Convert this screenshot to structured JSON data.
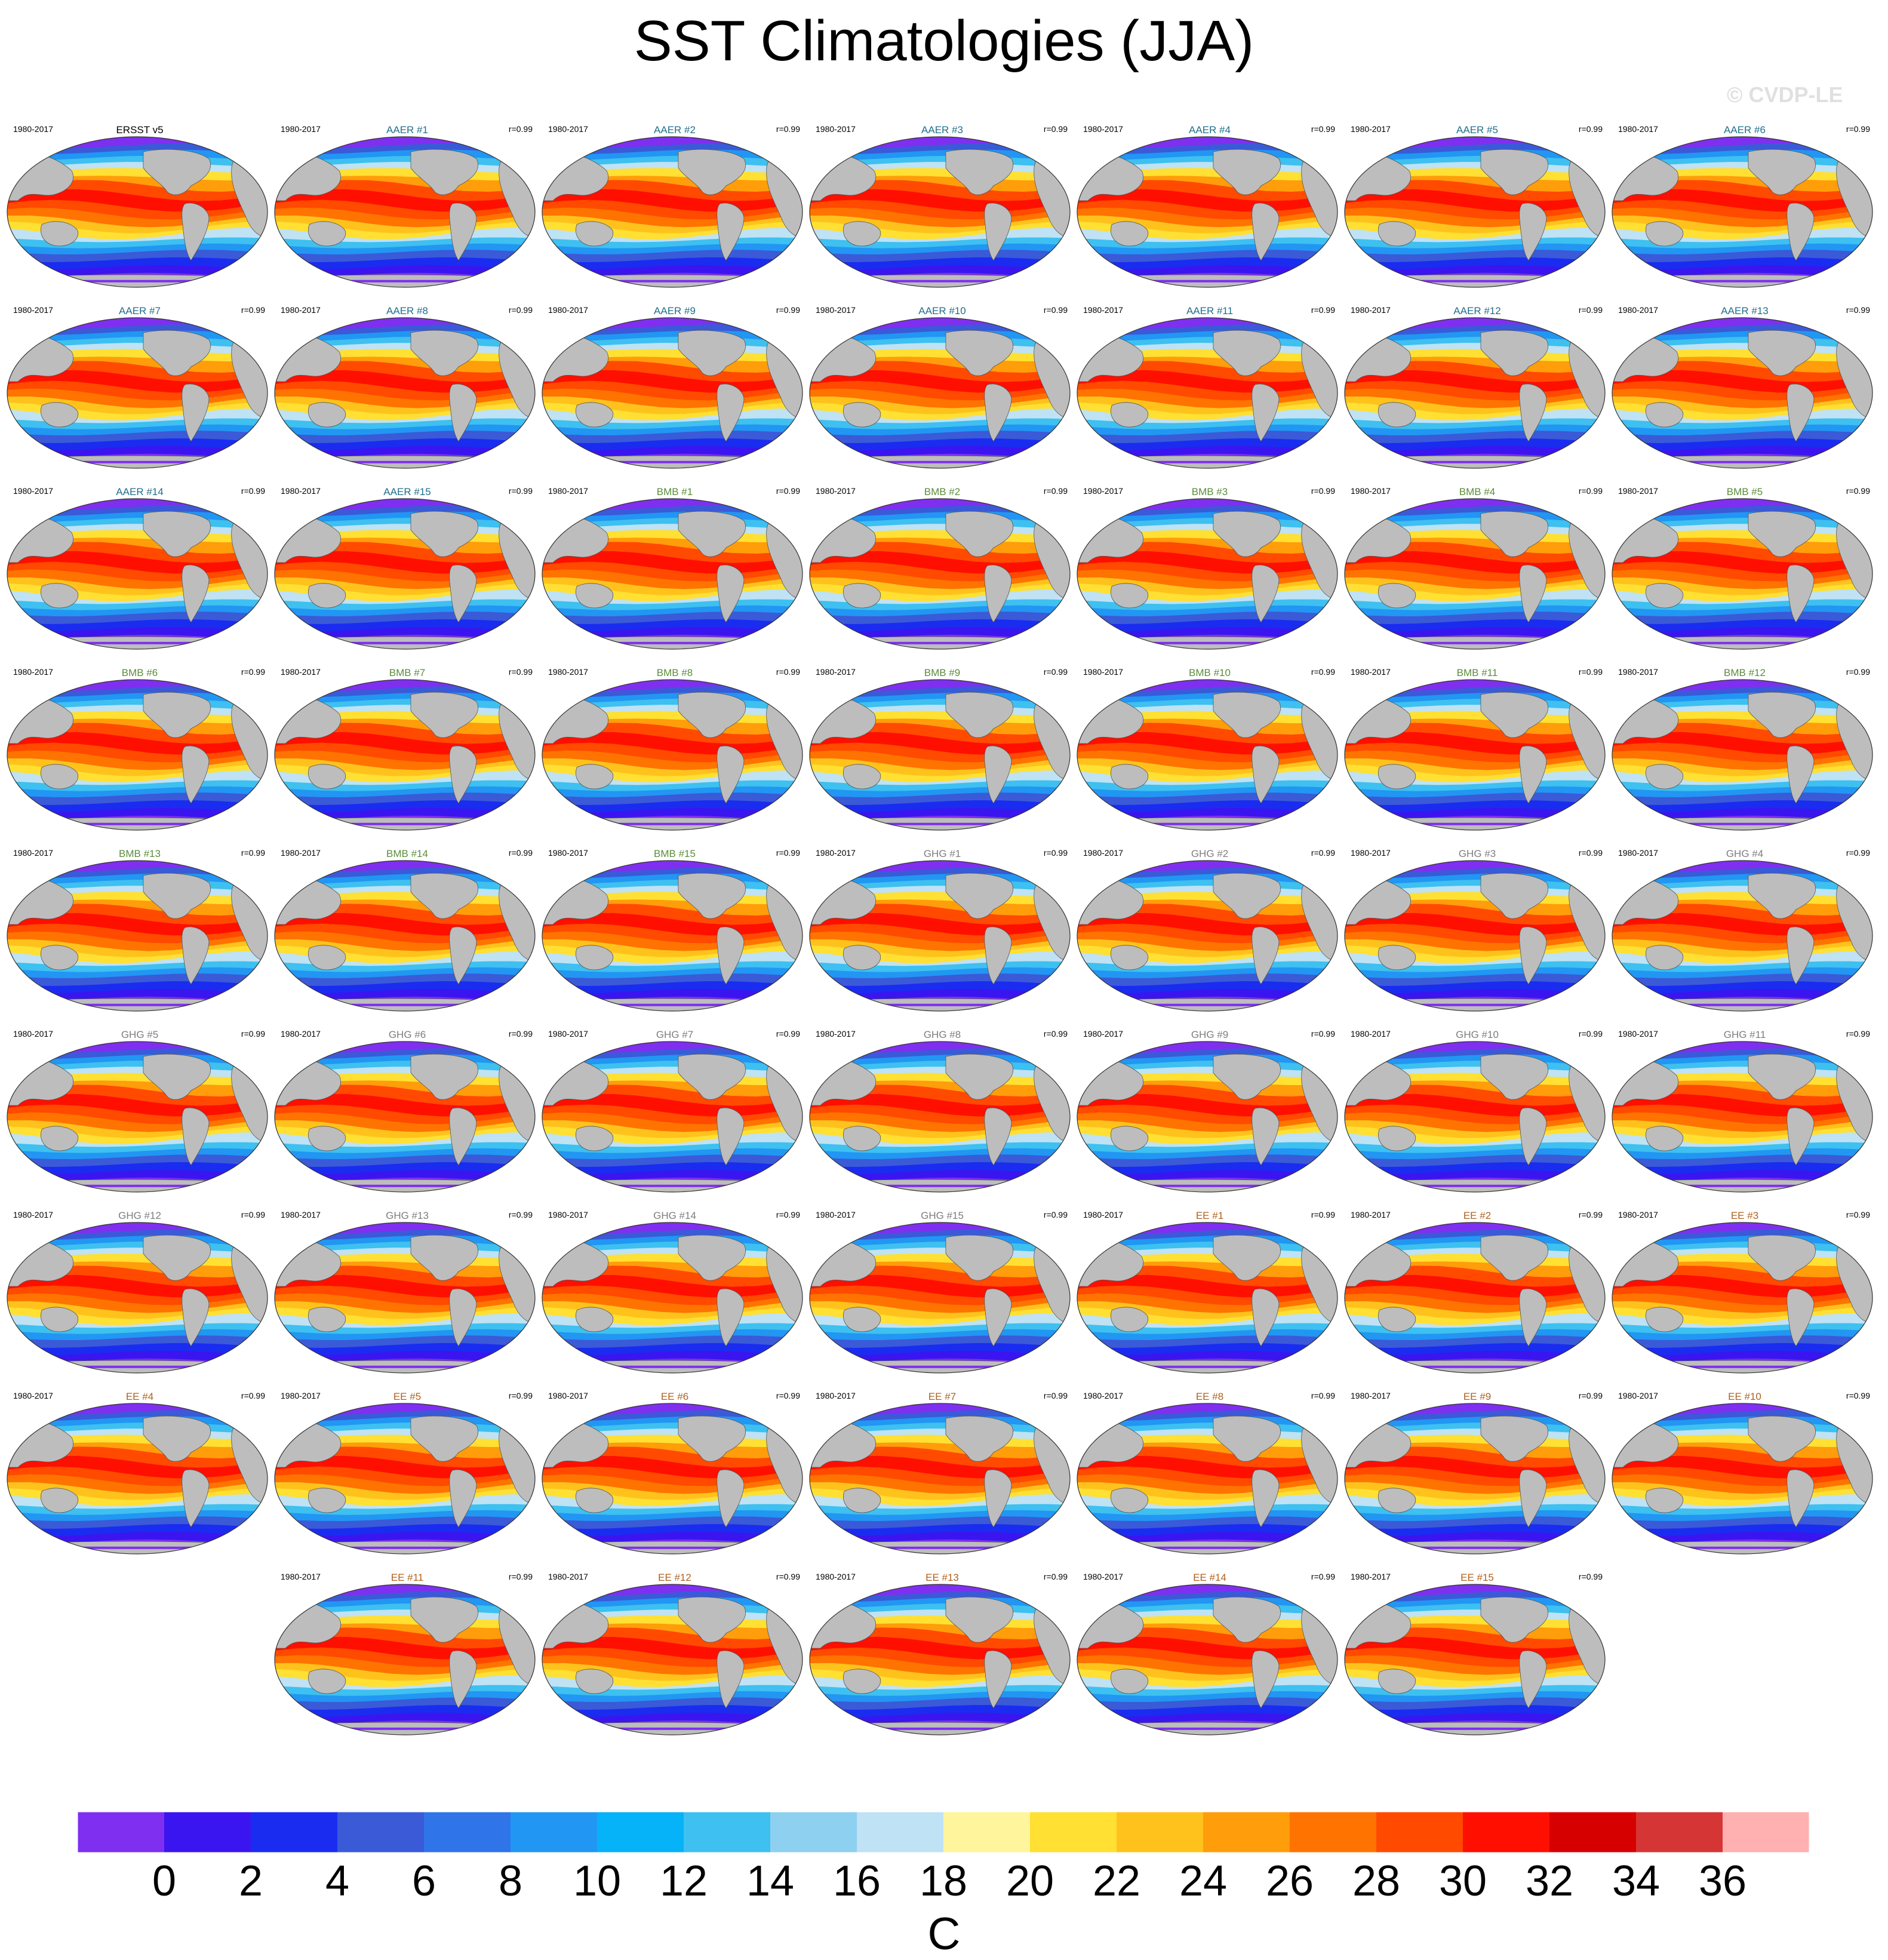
{
  "title": "SST Climatologies (JJA)",
  "watermark": "© CVDP-LE",
  "period": "1980-2017",
  "correlation": "r=0.99",
  "group_colors": {
    "obs": "#000000",
    "AAER": "#1f6e8c",
    "BMB": "#5b8c3a",
    "GHG": "#7d7d7d",
    "EE": "#b0601c"
  },
  "panels": [
    {
      "label": "ERSST v5",
      "group": "obs",
      "r": ""
    },
    {
      "label": "AAER #1",
      "group": "AAER",
      "r": "r=0.99"
    },
    {
      "label": "AAER #2",
      "group": "AAER",
      "r": "r=0.99"
    },
    {
      "label": "AAER #3",
      "group": "AAER",
      "r": "r=0.99"
    },
    {
      "label": "AAER #4",
      "group": "AAER",
      "r": "r=0.99"
    },
    {
      "label": "AAER #5",
      "group": "AAER",
      "r": "r=0.99"
    },
    {
      "label": "AAER #6",
      "group": "AAER",
      "r": "r=0.99"
    },
    {
      "label": "AAER #7",
      "group": "AAER",
      "r": "r=0.99"
    },
    {
      "label": "AAER #8",
      "group": "AAER",
      "r": "r=0.99"
    },
    {
      "label": "AAER #9",
      "group": "AAER",
      "r": "r=0.99"
    },
    {
      "label": "AAER #10",
      "group": "AAER",
      "r": "r=0.99"
    },
    {
      "label": "AAER #11",
      "group": "AAER",
      "r": "r=0.99"
    },
    {
      "label": "AAER #12",
      "group": "AAER",
      "r": "r=0.99"
    },
    {
      "label": "AAER #13",
      "group": "AAER",
      "r": "r=0.99"
    },
    {
      "label": "AAER #14",
      "group": "AAER",
      "r": "r=0.99"
    },
    {
      "label": "AAER #15",
      "group": "AAER",
      "r": "r=0.99"
    },
    {
      "label": "BMB #1",
      "group": "BMB",
      "r": "r=0.99"
    },
    {
      "label": "BMB #2",
      "group": "BMB",
      "r": "r=0.99"
    },
    {
      "label": "BMB #3",
      "group": "BMB",
      "r": "r=0.99"
    },
    {
      "label": "BMB #4",
      "group": "BMB",
      "r": "r=0.99"
    },
    {
      "label": "BMB #5",
      "group": "BMB",
      "r": "r=0.99"
    },
    {
      "label": "BMB #6",
      "group": "BMB",
      "r": "r=0.99"
    },
    {
      "label": "BMB #7",
      "group": "BMB",
      "r": "r=0.99"
    },
    {
      "label": "BMB #8",
      "group": "BMB",
      "r": "r=0.99"
    },
    {
      "label": "BMB #9",
      "group": "BMB",
      "r": "r=0.99"
    },
    {
      "label": "BMB #10",
      "group": "BMB",
      "r": "r=0.99"
    },
    {
      "label": "BMB #11",
      "group": "BMB",
      "r": "r=0.99"
    },
    {
      "label": "BMB #12",
      "group": "BMB",
      "r": "r=0.99"
    },
    {
      "label": "BMB #13",
      "group": "BMB",
      "r": "r=0.99"
    },
    {
      "label": "BMB #14",
      "group": "BMB",
      "r": "r=0.99"
    },
    {
      "label": "BMB #15",
      "group": "BMB",
      "r": "r=0.99"
    },
    {
      "label": "GHG #1",
      "group": "GHG",
      "r": "r=0.99"
    },
    {
      "label": "GHG #2",
      "group": "GHG",
      "r": "r=0.99"
    },
    {
      "label": "GHG #3",
      "group": "GHG",
      "r": "r=0.99"
    },
    {
      "label": "GHG #4",
      "group": "GHG",
      "r": "r=0.99"
    },
    {
      "label": "GHG #5",
      "group": "GHG",
      "r": "r=0.99"
    },
    {
      "label": "GHG #6",
      "group": "GHG",
      "r": "r=0.99"
    },
    {
      "label": "GHG #7",
      "group": "GHG",
      "r": "r=0.99"
    },
    {
      "label": "GHG #8",
      "group": "GHG",
      "r": "r=0.99"
    },
    {
      "label": "GHG #9",
      "group": "GHG",
      "r": "r=0.99"
    },
    {
      "label": "GHG #10",
      "group": "GHG",
      "r": "r=0.99"
    },
    {
      "label": "GHG #11",
      "group": "GHG",
      "r": "r=0.99"
    },
    {
      "label": "GHG #12",
      "group": "GHG",
      "r": "r=0.99"
    },
    {
      "label": "GHG #13",
      "group": "GHG",
      "r": "r=0.99"
    },
    {
      "label": "GHG #14",
      "group": "GHG",
      "r": "r=0.99"
    },
    {
      "label": "GHG #15",
      "group": "GHG",
      "r": "r=0.99"
    },
    {
      "label": "EE #1",
      "group": "EE",
      "r": "r=0.99"
    },
    {
      "label": "EE #2",
      "group": "EE",
      "r": "r=0.99"
    },
    {
      "label": "EE #3",
      "group": "EE",
      "r": "r=0.99"
    },
    {
      "label": "EE #4",
      "group": "EE",
      "r": "r=0.99"
    },
    {
      "label": "EE #5",
      "group": "EE",
      "r": "r=0.99"
    },
    {
      "label": "EE #6",
      "group": "EE",
      "r": "r=0.99"
    },
    {
      "label": "EE #7",
      "group": "EE",
      "r": "r=0.99"
    },
    {
      "label": "EE #8",
      "group": "EE",
      "r": "r=0.99"
    },
    {
      "label": "EE #9",
      "group": "EE",
      "r": "r=0.99"
    },
    {
      "label": "EE #10",
      "group": "EE",
      "r": "r=0.99"
    },
    {
      "label": "EE #11",
      "group": "EE",
      "r": "r=0.99"
    },
    {
      "label": "EE #12",
      "group": "EE",
      "r": "r=0.99"
    },
    {
      "label": "EE #13",
      "group": "EE",
      "r": "r=0.99"
    },
    {
      "label": "EE #14",
      "group": "EE",
      "r": "r=0.99"
    },
    {
      "label": "EE #15",
      "group": "EE",
      "r": "r=0.99"
    }
  ],
  "chart_data": {
    "type": "heatmap",
    "title": "SST Climatologies (JJA)",
    "variable": "SST",
    "season": "JJA",
    "units": "C",
    "period": "1980-2017",
    "projection": "global ellipse (Robinson-like), Pacific-centred",
    "layout": {
      "columns": 7,
      "rows": 9
    },
    "colorbar": {
      "levels": [
        0,
        2,
        4,
        6,
        8,
        10,
        12,
        14,
        16,
        18,
        20,
        22,
        24,
        26,
        28,
        30,
        32,
        34,
        36
      ],
      "tick_labels": [
        "0",
        "2",
        "4",
        "6",
        "8",
        "10",
        "12",
        "14",
        "16",
        "18",
        "20",
        "22",
        "24",
        "26",
        "28",
        "30",
        "32",
        "34",
        "36"
      ],
      "colors": [
        "#7f2ff0",
        "#3a15f0",
        "#1a2cf0",
        "#3a5ad8",
        "#2f74e8",
        "#2196f3",
        "#06b2f8",
        "#3ec0f0",
        "#8ed0f0",
        "#bfe2f4",
        "#fff59d",
        "#ffe033",
        "#ffc21c",
        "#ff9d0a",
        "#ff7300",
        "#ff4a00",
        "#ff0f00",
        "#d70000",
        "#d63535",
        "#ffb0b0"
      ],
      "label": "C"
    },
    "series": [
      {
        "name": "ERSST v5",
        "pattern_correlation": null
      },
      {
        "name": "AAER ensemble (#1-#15)",
        "pattern_correlation": 0.99
      },
      {
        "name": "BMB ensemble (#1-#15)",
        "pattern_correlation": 0.99
      },
      {
        "name": "GHG ensemble (#1-#15)",
        "pattern_correlation": 0.99
      },
      {
        "name": "EE ensemble (#1-#15)",
        "pattern_correlation": 0.99
      }
    ]
  }
}
